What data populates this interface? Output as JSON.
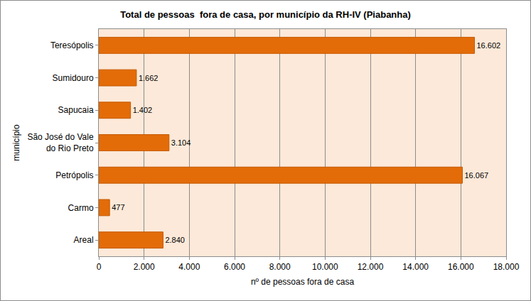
{
  "chart_data": {
    "type": "bar",
    "orientation": "horizontal",
    "title": "Total de pessoas  fora de casa, por município da RH-IV (Piabanha)",
    "x_label": "nº de pessoas fora de casa",
    "y_label": "município",
    "categories": [
      "Teresópolis",
      "Sumidouro",
      "Sapucaia",
      "São José do Vale do Rio Preto",
      "Petrópolis",
      "Carmo",
      "Areal"
    ],
    "values": [
      16602,
      1662,
      1402,
      3104,
      16067,
      477,
      2840
    ],
    "value_labels": [
      "16.602",
      "1.662",
      "1.402",
      "3.104",
      "16.067",
      "477",
      "2.840"
    ],
    "color": "#e36c09",
    "xlim": [
      0,
      18000
    ],
    "xticks": [
      0,
      {
        "value": 2000,
        "label": "2.000"
      },
      {
        "value": 4000,
        "label": "4.000"
      },
      {
        "value": 6000,
        "label": "6.000"
      },
      {
        "value": 8000,
        "label": "8.000"
      },
      {
        "value": 10000,
        "label": "10.000"
      },
      {
        "value": 12000,
        "label": "12.000"
      },
      {
        "value": 14000,
        "label": "14.000"
      },
      {
        "value": 16000,
        "label": "16.000"
      },
      {
        "value": 18000,
        "label": "18.000"
      }
    ],
    "grid": true,
    "data_labels": true
  }
}
